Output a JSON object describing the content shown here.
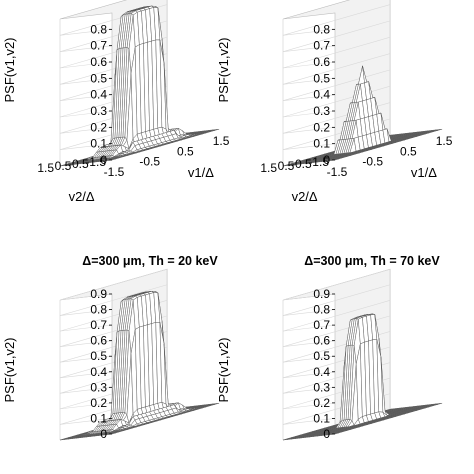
{
  "chart_data": [
    {
      "type": "surface",
      "title": "",
      "zlabel": "PSF(v1,v2)",
      "xlabel": "v1/Δ",
      "ylabel": "v2/Δ",
      "zticks": [
        "0",
        "0.1",
        "0.2",
        "0.3",
        "0.4",
        "0.5",
        "0.6",
        "0.7",
        "0.8"
      ],
      "xticks": [
        "-1.5",
        "-0.5",
        "0.5",
        "1.5"
      ],
      "yticks": [
        "1.5",
        "0.5",
        "-0.5",
        "-1.5"
      ],
      "zlim": [
        0,
        0.9
      ],
      "xlim": [
        -1.5,
        1.5
      ],
      "ylim": [
        -1.5,
        1.5
      ],
      "peak": 0.85,
      "shape": "flat-top square plateau of half-width 0.5 with shallow side lobes near the base"
    },
    {
      "type": "surface",
      "title": "",
      "zlabel": "PSF(v1,v2)",
      "xlabel": "v1/Δ",
      "ylabel": "v2/Δ",
      "zticks": [
        "0",
        "0.1",
        "0.2",
        "0.3",
        "0.4",
        "0.5",
        "0.6",
        "0.7",
        "0.8"
      ],
      "xticks": [
        "-1.5",
        "-0.5",
        "0.5",
        "1.5"
      ],
      "yticks": [
        "1.5",
        "0.5",
        "-0.5",
        "-1.5"
      ],
      "zlim": [
        0,
        0.9
      ],
      "xlim": [
        -1.5,
        1.5
      ],
      "ylim": [
        -1.5,
        1.5
      ],
      "peak": 0.5,
      "shape": "narrow pyramid-like peak"
    },
    {
      "type": "surface",
      "title": "Δ=300 μm, Th = 20 keV",
      "zlabel": "PSF(v1,v2)",
      "zticks": [
        "0",
        "0.1",
        "0.2",
        "0.3",
        "0.4",
        "0.5",
        "0.6",
        "0.7",
        "0.8",
        "0.9"
      ],
      "zlim": [
        0,
        0.9
      ],
      "xlim": [
        -1.5,
        1.5
      ],
      "ylim": [
        -1.5,
        1.5
      ],
      "peak": 0.82,
      "shape": "flat-top square plateau of half-width 0.5 with shallow side lobes near the base"
    },
    {
      "type": "surface",
      "title": "Δ=300 μm, Th = 70 keV",
      "zlabel": "PSF(v1,v2)",
      "zticks": [
        "0",
        "0.1",
        "0.2",
        "0.3",
        "0.4",
        "0.5",
        "0.6",
        "0.7",
        "0.8",
        "0.9"
      ],
      "zlim": [
        0,
        0.9
      ],
      "xlim": [
        -1.5,
        1.5
      ],
      "ylim": [
        -1.5,
        1.5
      ],
      "peak": 0.68,
      "shape": "narrower flat-top plateau of half-width 0.38"
    }
  ]
}
